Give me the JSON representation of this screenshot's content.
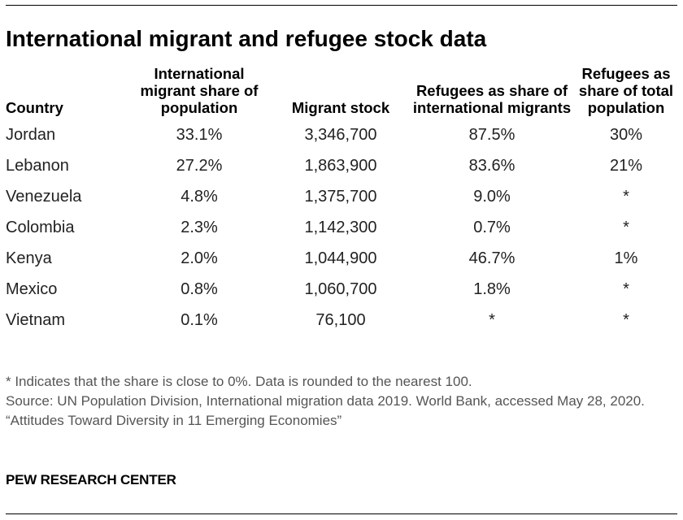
{
  "title": "International migrant and refugee stock data",
  "table": {
    "headers": [
      "Country",
      "International migrant share of population",
      "Migrant stock",
      "Refugees as share of international migrants",
      "Refugees as share of total population"
    ],
    "rows": [
      [
        "Jordan",
        "33.1%",
        "3,346,700",
        "87.5%",
        "30%"
      ],
      [
        "Lebanon",
        "27.2%",
        "1,863,900",
        "83.6%",
        "21%"
      ],
      [
        "Venezuela",
        "4.8%",
        "1,375,700",
        "9.0%",
        "*"
      ],
      [
        "Colombia",
        "2.3%",
        "1,142,300",
        "0.7%",
        "*"
      ],
      [
        "Kenya",
        "2.0%",
        "1,044,900",
        "46.7%",
        "1%"
      ],
      [
        "Mexico",
        "0.8%",
        "1,060,700",
        "1.8%",
        "*"
      ],
      [
        "Vietnam",
        "0.1%",
        "76,100",
        "*",
        "*"
      ]
    ]
  },
  "notes": {
    "footnote": "* Indicates that the share is close to 0%. Data is rounded to the nearest 100.",
    "source": "Source: UN Population Division, International migration data 2019. World Bank, accessed May 28, 2020.",
    "report": "“Attitudes Toward Diversity in 11 Emerging Economies”"
  },
  "brand": "PEW RESEARCH CENTER"
}
